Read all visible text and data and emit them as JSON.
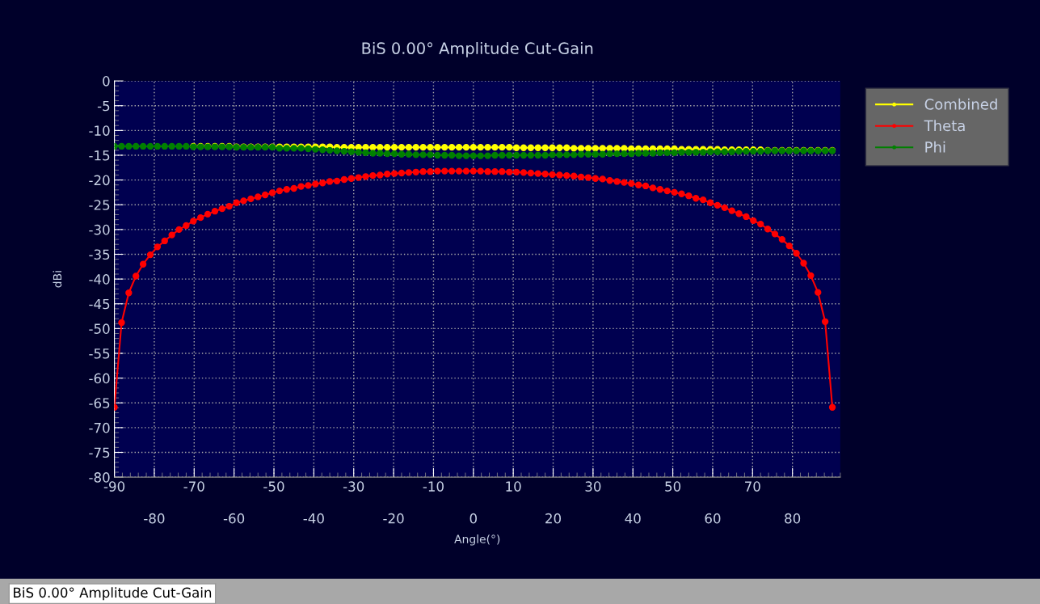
{
  "chart_data": {
    "type": "line",
    "title": "BiS 0.00° Amplitude Cut-Gain",
    "xlabel": "Angle(°)",
    "ylabel": "dBi",
    "x": [
      -90,
      -88.2,
      -86.4,
      -84.6,
      -82.8,
      -81,
      -79.2,
      -77.4,
      -75.6,
      -73.8,
      -72,
      -70.2,
      -68.4,
      -66.6,
      -64.8,
      -63,
      -61.2,
      -59.4,
      -57.6,
      -55.8,
      -54,
      -52.2,
      -50.4,
      -48.6,
      -46.8,
      -45,
      -43.2,
      -41.4,
      -39.6,
      -37.8,
      -36,
      -34.2,
      -32.4,
      -30.6,
      -28.8,
      -27,
      -25.2,
      -23.4,
      -21.6,
      -19.8,
      -18,
      -16.2,
      -14.4,
      -12.6,
      -10.8,
      -9,
      -7.2,
      -5.4,
      -3.6,
      -1.8,
      0,
      1.8,
      3.6,
      5.4,
      7.2,
      9,
      10.8,
      12.6,
      14.4,
      16.2,
      18,
      19.8,
      21.6,
      23.4,
      25.2,
      27,
      28.8,
      30.6,
      32.4,
      34.2,
      36,
      37.8,
      39.6,
      41.4,
      43.2,
      45,
      46.8,
      48.6,
      50.4,
      52.2,
      54,
      55.8,
      57.6,
      59.4,
      61.2,
      63,
      64.8,
      66.6,
      68.4,
      70.2,
      72,
      73.8,
      75.6,
      77.4,
      79.2,
      81,
      82.8,
      84.6,
      86.4,
      88.2,
      90
    ],
    "series": [
      {
        "name": "Combined",
        "color": "#ffff00",
        "values": [
          null,
          null,
          null,
          null,
          null,
          null,
          null,
          null,
          null,
          null,
          null,
          -13.2,
          -13.2,
          -13.2,
          -13.2,
          -13.2,
          -13.2,
          -13.3,
          -13.3,
          -13.3,
          -13.3,
          -13.3,
          -13.3,
          -13.3,
          -13.3,
          -13.3,
          -13.3,
          -13.3,
          -13.3,
          -13.3,
          -13.3,
          -13.4,
          -13.4,
          -13.4,
          -13.4,
          -13.4,
          -13.4,
          -13.4,
          -13.4,
          -13.4,
          -13.4,
          -13.4,
          -13.4,
          -13.4,
          -13.4,
          -13.4,
          -13.4,
          -13.4,
          -13.4,
          -13.4,
          -13.4,
          -13.4,
          -13.4,
          -13.4,
          -13.4,
          -13.4,
          -13.5,
          -13.5,
          -13.5,
          -13.5,
          -13.5,
          -13.5,
          -13.5,
          -13.5,
          -13.6,
          -13.6,
          -13.6,
          -13.6,
          -13.6,
          -13.6,
          -13.6,
          -13.6,
          -13.7,
          -13.7,
          -13.7,
          -13.7,
          -13.7,
          -13.7,
          -13.7,
          -13.8,
          -13.8,
          -13.8,
          -13.8,
          -13.8,
          -13.8,
          -13.9,
          -13.9,
          -13.9,
          -13.9,
          -13.9,
          -13.9,
          -14.0,
          -14.0,
          -14.0,
          -14.0,
          -14.0,
          -14.0,
          -14.0,
          -14.0,
          -14.0,
          -14.0
        ]
      },
      {
        "name": "Theta",
        "color": "#ff0000",
        "values": [
          -65.9,
          -48.8,
          -42.8,
          -39.4,
          -37.0,
          -35.1,
          -33.5,
          -32.3,
          -31.1,
          -30.0,
          -29.2,
          -28.3,
          -27.6,
          -26.9,
          -26.3,
          -25.8,
          -25.3,
          -24.6,
          -24.2,
          -23.8,
          -23.4,
          -23.0,
          -22.6,
          -22.2,
          -21.9,
          -21.7,
          -21.3,
          -21.1,
          -20.8,
          -20.6,
          -20.3,
          -20.2,
          -19.9,
          -19.7,
          -19.5,
          -19.3,
          -19.1,
          -19.0,
          -18.8,
          -18.7,
          -18.6,
          -18.5,
          -18.4,
          -18.3,
          -18.3,
          -18.2,
          -18.2,
          -18.2,
          -18.2,
          -18.2,
          -18.2,
          -18.2,
          -18.3,
          -18.3,
          -18.3,
          -18.4,
          -18.4,
          -18.5,
          -18.6,
          -18.7,
          -18.8,
          -18.9,
          -19.0,
          -19.1,
          -19.2,
          -19.4,
          -19.5,
          -19.7,
          -19.8,
          -20.1,
          -20.3,
          -20.5,
          -20.7,
          -21.0,
          -21.2,
          -21.6,
          -21.9,
          -22.2,
          -22.5,
          -22.8,
          -23.2,
          -23.7,
          -24.0,
          -24.6,
          -25.1,
          -25.6,
          -26.2,
          -26.8,
          -27.4,
          -28.2,
          -28.9,
          -29.9,
          -30.9,
          -32.0,
          -33.3,
          -34.8,
          -36.8,
          -39.3,
          -42.7,
          -48.6,
          -65.9
        ]
      },
      {
        "name": "Phi",
        "color": "#008000",
        "values": [
          -13.2,
          -13.2,
          -13.2,
          -13.2,
          -13.2,
          -13.2,
          -13.2,
          -13.2,
          -13.2,
          -13.2,
          -13.2,
          -13.3,
          -13.3,
          -13.3,
          -13.3,
          -13.3,
          -13.3,
          -13.4,
          -13.4,
          -13.4,
          -13.4,
          -13.4,
          -13.4,
          -13.6,
          -13.6,
          -13.6,
          -13.6,
          -13.7,
          -13.8,
          -13.9,
          -14.0,
          -14.1,
          -14.2,
          -14.3,
          -14.4,
          -14.5,
          -14.6,
          -14.6,
          -14.7,
          -14.7,
          -14.8,
          -14.8,
          -14.9,
          -14.9,
          -14.9,
          -15.0,
          -15.0,
          -15.0,
          -15.1,
          -15.1,
          -15.1,
          -15.1,
          -15.1,
          -15.0,
          -15.0,
          -15.0,
          -15.0,
          -15.0,
          -15.0,
          -15.0,
          -15.0,
          -14.9,
          -14.9,
          -14.9,
          -14.9,
          -14.8,
          -14.8,
          -14.8,
          -14.8,
          -14.7,
          -14.7,
          -14.7,
          -14.7,
          -14.6,
          -14.6,
          -14.6,
          -14.5,
          -14.5,
          -14.5,
          -14.4,
          -14.4,
          -14.4,
          -14.4,
          -14.3,
          -14.3,
          -14.3,
          -14.3,
          -14.2,
          -14.2,
          -14.2,
          -14.2,
          -14.1,
          -14.1,
          -14.1,
          -14.1,
          -14.1,
          -14.1,
          -14.1,
          -14.1,
          -14.1,
          -14.1
        ]
      }
    ],
    "xlim": [
      -90,
      92
    ],
    "xticks": [
      -90,
      {
        "value": -80,
        "label": null
      },
      -70,
      {
        "value": -60,
        "label": null
      },
      -50,
      {
        "value": -40,
        "label": null
      },
      -30,
      {
        "value": -20,
        "label": null
      },
      -10,
      {
        "value": 0,
        "label": null
      },
      10,
      {
        "value": 20,
        "label": null
      },
      30,
      {
        "value": 40,
        "label": null
      },
      50,
      {
        "value": 60,
        "label": null
      },
      70,
      {
        "value": 80,
        "label": null
      }
    ],
    "x2lim": [
      -90,
      92
    ],
    "x2ticks": [
      -80,
      -60,
      -40,
      -20,
      0,
      20,
      40,
      60,
      80
    ],
    "ylim": [
      -80,
      0
    ],
    "yticks": [
      -80,
      -75,
      -70,
      -65,
      -60,
      -55,
      -50,
      -45,
      -40,
      -35,
      -30,
      -25,
      -20,
      -15,
      -10,
      -5,
      0
    ],
    "grid": true,
    "legend": "top right",
    "marker": "circle",
    "line_style": "solid",
    "annotations": [
      "BiS 0.00° Amplitude Cut-Gain"
    ]
  }
}
